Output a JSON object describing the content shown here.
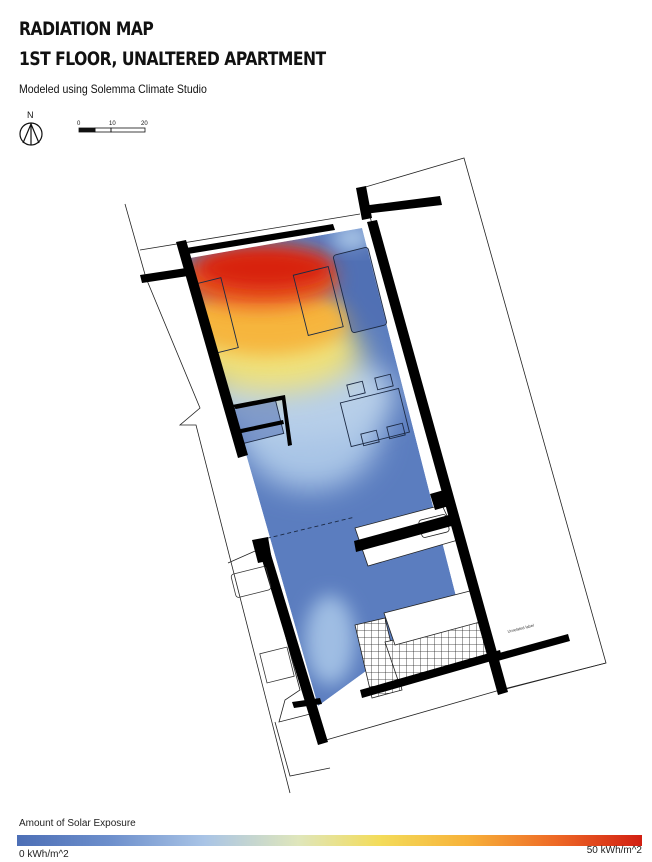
{
  "header": {
    "title_line1": "RADIATION MAP",
    "title_line2": "1ST FLOOR, UNALTERED APARTMENT",
    "subtitle": "Modeled using Solemma Climate Studio"
  },
  "north_arrow": {
    "label": "N",
    "icon": "north-arrow-icon"
  },
  "scale_bar": {
    "ticks": [
      "0",
      "10",
      "20"
    ]
  },
  "legend": {
    "title": "Amount of Solar Exposure",
    "min_label": "0 kWh/m^2",
    "max_label": "50 kWh/m^2",
    "colors": [
      "#4d6fb6",
      "#a9c4e6",
      "#f3dc5a",
      "#ee6a26",
      "#d21f12"
    ]
  },
  "plan": {
    "annotation": "Unrelated label",
    "wall_color": "#000000",
    "floor_base_color": "#5e7fc0",
    "hot_color": "#d8210f"
  }
}
